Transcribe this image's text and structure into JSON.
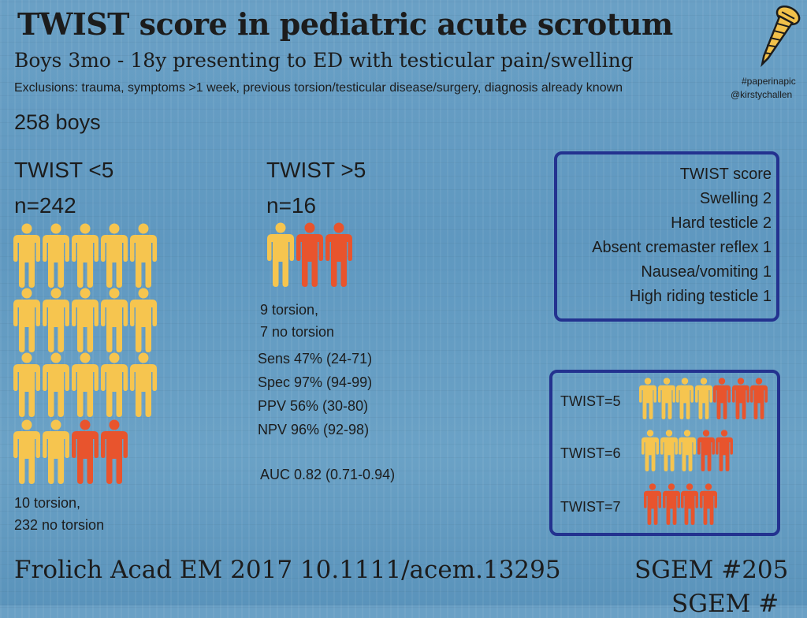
{
  "header": {
    "title": "TWIST score in pediatric acute scrotum",
    "subtitle": "Boys 3mo - 18y presenting to ED with testicular pain/swelling",
    "exclusions": "Exclusions: trauma, symptoms >1 week, previous torsion/testicular disease/surgery, diagnosis already known",
    "hashtag1": "#paperinapic",
    "hashtag2": "@kirstychallen",
    "total": "258 boys"
  },
  "low_group": {
    "label": "TWIST <5",
    "n": "n=242",
    "result1": "10 torsion,",
    "result2": "232 no torsion"
  },
  "high_group": {
    "label": "TWIST >5",
    "n": "n=16",
    "result1": "9 torsion,",
    "result2": "7 no torsion",
    "sens": "Sens 47% (24-71)",
    "spec": "Spec 97% (94-99)",
    "ppv": "PPV 56% (30-80)",
    "npv": "NPV 96% (92-98)",
    "auc": "AUC 0.82 (0.71-0.94)"
  },
  "score_box": {
    "lines": [
      "TWIST score",
      "Swelling 2",
      "Hard testicle 2",
      "Absent cremaster reflex 1",
      "Nausea/vomiting 1",
      "High riding testicle 1"
    ]
  },
  "twist_box": {
    "rows": [
      {
        "label": "TWIST=5",
        "no_torsion": 4,
        "torsion": 3
      },
      {
        "label": "TWIST=6",
        "no_torsion": 3,
        "torsion": 2
      },
      {
        "label": "TWIST=7",
        "no_torsion": 0,
        "torsion": 4
      }
    ]
  },
  "footer": {
    "citation": "Frolich Acad EM 2017 10.1111/acem.13295",
    "sgem": "SGEM #205",
    "sgem_cut": "SGEM #"
  },
  "colors": {
    "background": "#6aa0c5",
    "no_torsion": "#f6c54f",
    "torsion": "#e8542d",
    "box_border": "#23328f"
  },
  "icons": {
    "logo": "screw-icon",
    "person": "person-icon"
  }
}
